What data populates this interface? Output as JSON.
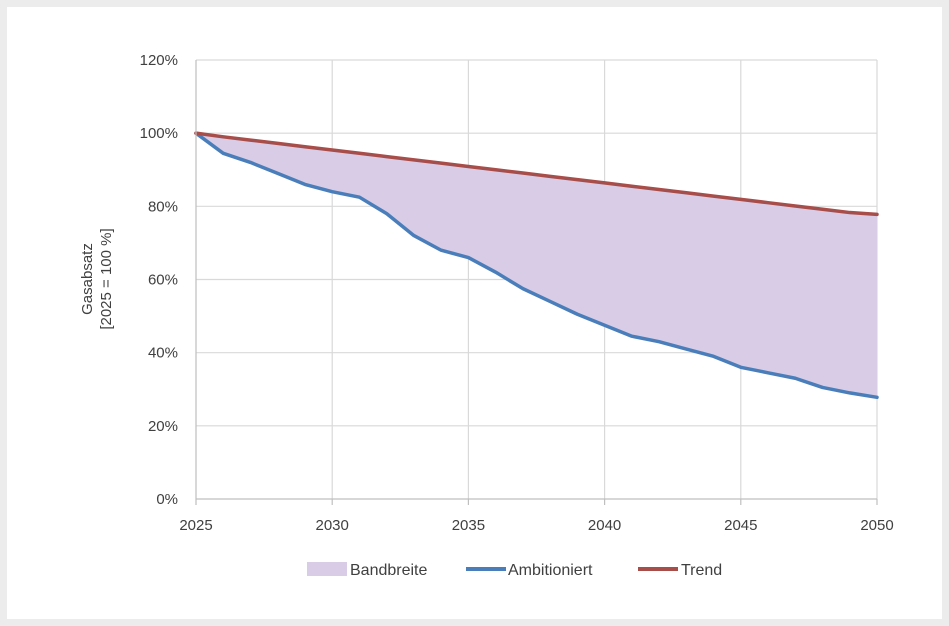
{
  "chart_data": {
    "type": "area",
    "title": "",
    "ylabel_lines": [
      "Gasabsatz",
      "[2025 = 100 %]"
    ],
    "xlabel": "",
    "xlim": [
      2025,
      2050
    ],
    "ylim": [
      0,
      1.2
    ],
    "x_ticks": [
      2025,
      2030,
      2035,
      2040,
      2045,
      2050
    ],
    "x_tick_labels": [
      "2025",
      "2030",
      "2035",
      "2040",
      "2045",
      "2050"
    ],
    "y_ticks": [
      0,
      0.2,
      0.4,
      0.6,
      0.8,
      1.0,
      1.2
    ],
    "y_tick_labels": [
      "0%",
      "20%",
      "40%",
      "60%",
      "80%",
      "100%",
      "120%"
    ],
    "grid": true,
    "legend_position": "bottom",
    "x": [
      2025,
      2026,
      2027,
      2028,
      2029,
      2030,
      2031,
      2032,
      2033,
      2034,
      2035,
      2036,
      2037,
      2038,
      2039,
      2040,
      2041,
      2042,
      2043,
      2044,
      2045,
      2046,
      2047,
      2048,
      2049,
      2050
    ],
    "series": [
      {
        "name": "Ambitioniert",
        "color": "#4a7ebb",
        "values": [
          1.0,
          0.945,
          0.92,
          0.89,
          0.86,
          0.84,
          0.825,
          0.78,
          0.72,
          0.68,
          0.66,
          0.62,
          0.575,
          0.54,
          0.505,
          0.475,
          0.445,
          0.43,
          0.41,
          0.39,
          0.36,
          0.345,
          0.33,
          0.305,
          0.29,
          0.278
        ]
      },
      {
        "name": "Trend",
        "color": "#a74d4a",
        "values": [
          1.0,
          0.99,
          0.981,
          0.972,
          0.963,
          0.954,
          0.945,
          0.936,
          0.927,
          0.918,
          0.909,
          0.9,
          0.891,
          0.882,
          0.873,
          0.864,
          0.855,
          0.846,
          0.837,
          0.828,
          0.819,
          0.81,
          0.801,
          0.792,
          0.783,
          0.778
        ]
      }
    ],
    "band": {
      "name": "Bandbreite",
      "color": "#d8cce6",
      "lower_series": "Ambitioniert",
      "upper_series": "Trend"
    },
    "legend": [
      "Bandbreite",
      "Ambitioniert",
      "Trend"
    ]
  }
}
